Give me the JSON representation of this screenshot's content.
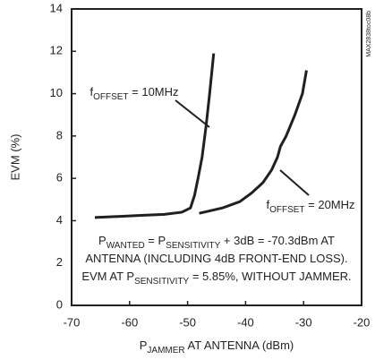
{
  "chart_data": {
    "type": "line",
    "y_label": "EVM (%)",
    "x_label": [
      {
        "text": "P"
      },
      {
        "text": "JAMMER",
        "sub": true
      },
      {
        "text": " AT ANTENNA (dBm)"
      }
    ],
    "watermark": "MAX2838toc08b",
    "xlim": [
      -70,
      -20
    ],
    "xticks": [
      -70,
      -60,
      -50,
      -40,
      -30,
      -20
    ],
    "ylim": [
      0,
      14
    ],
    "yticks": [
      0,
      2,
      4,
      6,
      8,
      10,
      12,
      14
    ],
    "grid": false,
    "series": [
      {
        "name": [
          {
            "text": "f"
          },
          {
            "text": "OFFSET",
            "sub": true
          },
          {
            "text": " = 10MHz"
          }
        ],
        "color": "#231f20",
        "x": [
          -66,
          -62,
          -58,
          -54,
          -51,
          -49.5,
          -48.8,
          -48.2,
          -47.5,
          -46.8,
          -46.2,
          -45.5
        ],
        "values": [
          4.15,
          4.2,
          4.25,
          4.3,
          4.4,
          4.6,
          5.2,
          6.0,
          7.0,
          8.5,
          10.0,
          11.9
        ]
      },
      {
        "name": [
          {
            "text": "f"
          },
          {
            "text": "OFFSET",
            "sub": true
          },
          {
            "text": " = 20MHz"
          }
        ],
        "color": "#231f20",
        "x": [
          -48,
          -44,
          -41,
          -39,
          -37,
          -35.5,
          -34.5,
          -34,
          -33,
          -31.5,
          -30.2,
          -29.5
        ],
        "values": [
          4.35,
          4.6,
          4.9,
          5.3,
          5.8,
          6.4,
          7.0,
          7.5,
          8.0,
          9.0,
          10.0,
          11.1
        ]
      }
    ],
    "note": [
      [
        {
          "text": "P"
        },
        {
          "text": "WANTED",
          "sub": true
        },
        {
          "text": " = P"
        },
        {
          "text": "SENSITIVITY",
          "sub": true
        },
        {
          "text": " + 3dB = -70.3dBm AT"
        }
      ],
      [
        {
          "text": "ANTENNA (INCLUDING 4dB FRONT-END LOSS)."
        }
      ],
      [
        {
          "text": "EVM AT P"
        },
        {
          "text": "SENSITIVITY",
          "sub": true
        },
        {
          "text": " = 5.85%, WITHOUT JAMMER."
        }
      ]
    ]
  }
}
